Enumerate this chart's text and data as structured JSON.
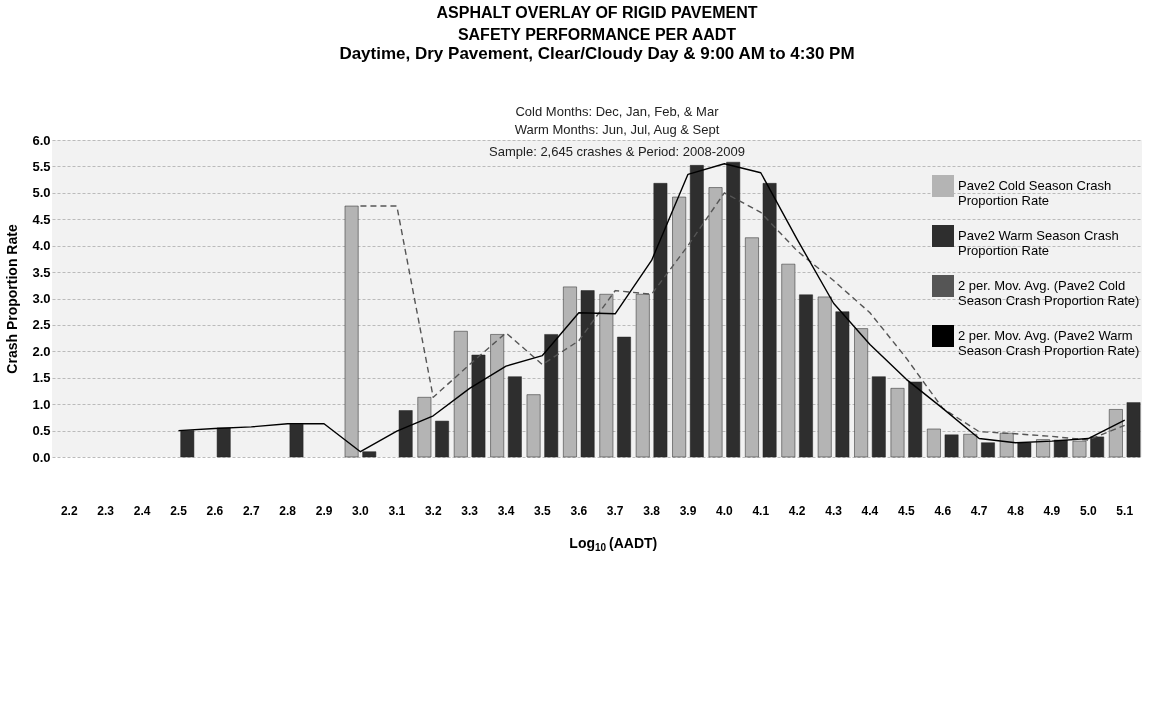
{
  "chart_data": {
    "type": "bar",
    "title": "ASPHALT  OVERLAY OF RIGID PAVEMENT\nSAFETY PERFORMANCE PER AADT",
    "subtitle": "Daytime, Dry Pavement, Clear/Cloudy Day & 9:00 AM to 4:30 PM",
    "annotations": [
      "Cold Months: Dec, Jan, Feb, & Mar",
      "Warm Months: Jun, Jul, Aug & Sept",
      "Sample: 2,645 crashes  &  Period: 2008-2009"
    ],
    "xlabel": "Log$_{10}$ (AADT)",
    "ylabel": "Crash Proportion Rate",
    "categories": [
      "2.2",
      "2.3",
      "2.4",
      "2.5",
      "2.6",
      "2.7",
      "2.8",
      "2.9",
      "3.0",
      "3.1",
      "3.2",
      "3.3",
      "3.4",
      "3.5",
      "3.6",
      "3.7",
      "3.8",
      "3.9",
      "4.0",
      "4.1",
      "4.2",
      "4.3",
      "4.4",
      "4.5",
      "4.6",
      "4.7",
      "4.8",
      "4.9",
      "5.0",
      "5.1"
    ],
    "series": [
      {
        "name": "Pave2 Cold Season Crash Proportion Rate",
        "color": "#b4b4b4",
        "values": [
          null,
          null,
          null,
          null,
          null,
          null,
          null,
          null,
          4.75,
          null,
          1.13,
          2.38,
          2.32,
          1.18,
          3.22,
          3.08,
          3.08,
          4.92,
          5.1,
          4.15,
          3.65,
          3.03,
          2.43,
          1.3,
          0.53,
          0.43,
          0.45,
          0.33,
          0.3,
          0.9
        ]
      },
      {
        "name": "Pave2 Warm Season Crash Proportion Rate",
        "color": "#2e2e2e",
        "values": [
          null,
          null,
          null,
          0.5,
          0.55,
          null,
          0.62,
          null,
          0.1,
          0.88,
          0.68,
          1.93,
          1.52,
          2.32,
          3.15,
          2.27,
          5.18,
          5.52,
          5.58,
          5.18,
          3.07,
          2.75,
          1.52,
          1.42,
          0.42,
          0.27,
          0.27,
          0.32,
          0.38,
          1.03
        ]
      },
      {
        "name": "2 per. Mov. Avg. (Pave2 Cold Season Crash Proportion Rate)",
        "type": "line",
        "line_style": "dashed",
        "color": "#555555",
        "values": [
          null,
          null,
          null,
          null,
          null,
          null,
          null,
          null,
          4.75,
          4.75,
          1.13,
          1.75,
          2.35,
          1.75,
          2.2,
          3.15,
          3.08,
          4.0,
          5.0,
          4.63,
          3.9,
          3.34,
          2.73,
          1.87,
          0.92,
          0.48,
          0.44,
          0.39,
          0.32,
          0.6
        ]
      },
      {
        "name": "2 per. Mov. Avg. (Pave2 Warm Season Crash Proportion Rate)",
        "type": "line",
        "line_style": "solid",
        "color": "#000000",
        "values": [
          null,
          null,
          null,
          0.5,
          0.54,
          0.57,
          0.63,
          0.63,
          0.1,
          0.49,
          0.78,
          1.3,
          1.72,
          1.92,
          2.73,
          2.71,
          3.72,
          5.35,
          5.55,
          5.38,
          4.12,
          2.91,
          2.13,
          1.47,
          0.92,
          0.35,
          0.27,
          0.3,
          0.35,
          0.7
        ]
      }
    ],
    "ylim": [
      0,
      6
    ],
    "yticks": [
      {
        "value": 0,
        "label": "0.0"
      },
      0.5,
      {
        "value": 1,
        "label": "1.0"
      },
      1.5,
      {
        "value": 2,
        "label": "2.0"
      },
      2.5,
      {
        "value": 3,
        "label": "3.0"
      },
      3.5,
      {
        "value": 4,
        "label": "4.0"
      },
      4.5,
      {
        "value": 5,
        "label": "5.0"
      },
      5.5,
      {
        "value": 6,
        "label": "6.0"
      }
    ],
    "grid": "y",
    "legend": "top right"
  }
}
